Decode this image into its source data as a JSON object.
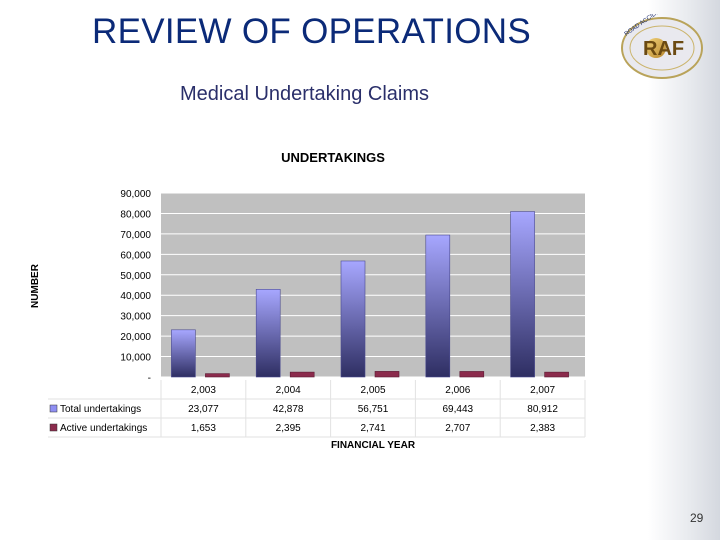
{
  "slide": {
    "title": "REVIEW OF OPERATIONS",
    "subtitle": "Medical Undertaking Claims",
    "page_number": "29",
    "logo_text": "RAF"
  },
  "chart_data": {
    "type": "bar",
    "title": "UNDERTAKINGS",
    "xlabel": "FINANCIAL YEAR",
    "ylabel": "NUMBER",
    "categories": [
      "2,003",
      "2,004",
      "2,005",
      "2,006",
      "2,007"
    ],
    "ylim": [
      0,
      90000
    ],
    "yticks": [
      "-",
      "10,000",
      "20,000",
      "30,000",
      "40,000",
      "50,000",
      "60,000",
      "70,000",
      "80,000",
      "90,000"
    ],
    "grid": true,
    "legend": "data-table",
    "series": [
      {
        "name": "Total undertakings",
        "values": [
          23077,
          42878,
          56751,
          69443,
          80912
        ],
        "labels": [
          "23,077",
          "42,878",
          "56,751",
          "69,443",
          "80,912"
        ],
        "color": "#8f8ff3"
      },
      {
        "name": "Active undertakings",
        "values": [
          1653,
          2395,
          2741,
          2707,
          2383
        ],
        "labels": [
          "1,653",
          "2,395",
          "2,741",
          "2,707",
          "2,383"
        ],
        "color": "#8b2b4c"
      }
    ],
    "colors": {
      "plot_bg": "#c0c0c0",
      "grid": "#ffffff"
    }
  }
}
